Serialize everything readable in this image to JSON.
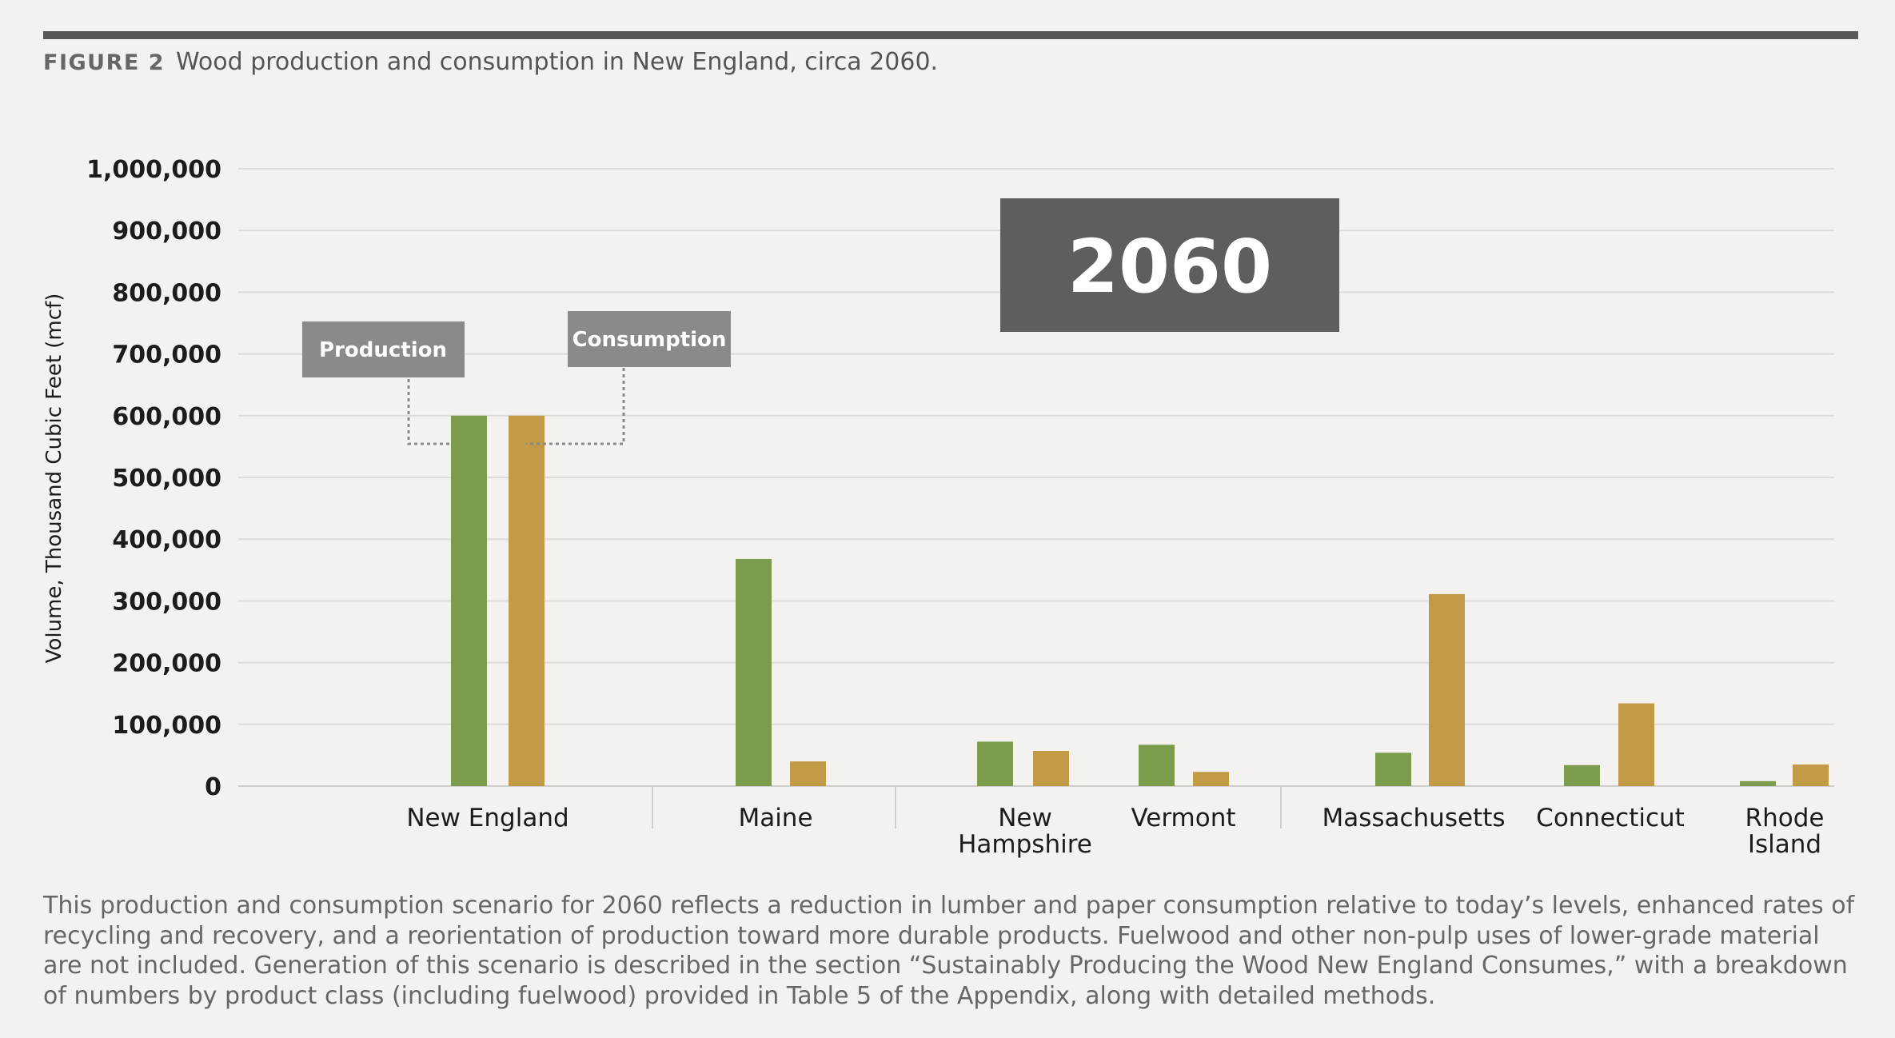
{
  "figure": {
    "label": "FIGURE 2",
    "title": "Wood production and consumption in New England, circa 2060."
  },
  "callouts": {
    "production": "Production",
    "consumption": "Consumption",
    "year_badge": "2060"
  },
  "caption": "This production and consumption scenario for 2060 reflects a reduction in lumber and paper consumption relative to today’s levels, enhanced rates of recycling and recovery, and a reorientation of production toward more durable products. Fuelwood and other non-pulp uses of lower-grade material are not included. Generation of this scenario is described in the section “Sustainably Producing the Wood New England Consumes,” with a breakdown of numbers by product class (including fuelwood) provided in Table 5 of the Appendix, along with detailed methods.",
  "colors": {
    "production": "#7a9c4c",
    "consumption": "#c39a45",
    "callout_box": "#8a8a8a",
    "badge": "#5d5e60",
    "grid": "#dedcdb"
  },
  "chart_data": {
    "type": "bar",
    "ylabel": "Volume, Thousand Cubic Feet (mcf)",
    "xlabel": "",
    "ylim": [
      0,
      1000000
    ],
    "yticks": [
      "0",
      "100,000",
      "200,000",
      "300,000",
      "400,000",
      "500,000",
      "600,000",
      "700,000",
      "800,000",
      "900,000",
      "1,000,000"
    ],
    "categories": [
      "New England",
      "Maine",
      "New Hampshire",
      "Vermont",
      "Massachusetts",
      "Connecticut",
      "Rhode Island"
    ],
    "category_lines": [
      [
        "New England"
      ],
      [
        "Maine"
      ],
      [
        "New",
        "Hampshire"
      ],
      [
        "Vermont"
      ],
      [
        "Massachusetts"
      ],
      [
        "Connecticut"
      ],
      [
        "Rhode",
        "Island"
      ]
    ],
    "series": [
      {
        "name": "Production",
        "values": [
          600000,
          368000,
          72000,
          67000,
          54000,
          34000,
          8000
        ]
      },
      {
        "name": "Consumption",
        "values": [
          600000,
          40000,
          57000,
          23000,
          311000,
          134000,
          35000
        ]
      }
    ],
    "grid": true
  }
}
